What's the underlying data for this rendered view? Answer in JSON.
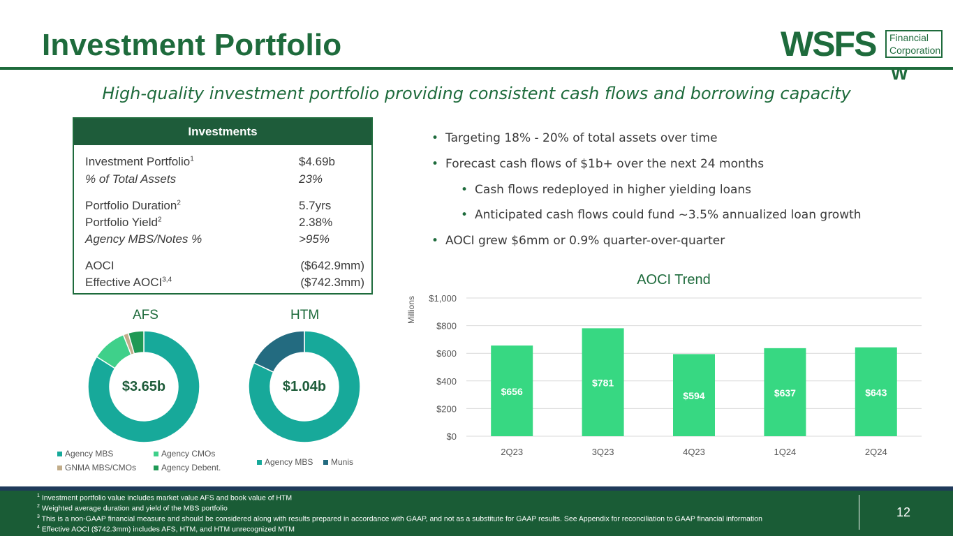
{
  "header": {
    "title": "Investment Portfolio",
    "subtitle": "High-quality investment portfolio providing consistent cash flows and borrowing capacity",
    "logo": {
      "name": "WSFS",
      "line1": "Financial",
      "line2": "Corporation",
      "mark": "W"
    }
  },
  "investments": {
    "heading": "Investments",
    "rows": [
      {
        "label": "Investment Portfolio",
        "sup": "1",
        "value": "$4.69b"
      },
      {
        "label": "% of Total Assets",
        "sup": "",
        "value": "23%"
      },
      {
        "label": "Portfolio Duration",
        "sup": "2",
        "value": "5.7yrs"
      },
      {
        "label": "Portfolio Yield",
        "sup": "2",
        "value": "2.38%"
      },
      {
        "label": "Agency MBS/Notes %",
        "sup": "",
        "value": ">95%"
      },
      {
        "label": "AOCI",
        "sup": "",
        "value": "($642.9mm)"
      },
      {
        "label": "Effective AOCI",
        "sup": "3,4",
        "value": "($742.3mm)"
      }
    ]
  },
  "bullets": [
    "Targeting 18% - 20% of total assets over time",
    "Forecast cash flows of $1b+ over the next 24 months",
    "Cash flows redeployed in higher yielding loans",
    "Anticipated cash flows could fund  ~3.5% annualized loan growth",
    "AOCI grew $6mm or 0.9% quarter-over-quarter"
  ],
  "colors": {
    "green_dark": "#1e6b3c",
    "teal": "#17a99a",
    "teal_light": "#3fd08a",
    "tan": "#c2ad8a",
    "green_mid": "#1f9955",
    "navy_teal": "#236b80",
    "bar": "#37d882"
  },
  "chart_data": [
    {
      "type": "pie",
      "title": "AFS",
      "center_label": "$3.65b",
      "categories": [
        "Agency MBS",
        "Agency CMOs",
        "GNMA MBS/CMOs",
        "Agency Debent."
      ],
      "values": [
        0.84,
        0.1,
        0.015,
        0.045
      ],
      "colors": [
        "#17a99a",
        "#3fd08a",
        "#c2ad8a",
        "#1f9955"
      ]
    },
    {
      "type": "pie",
      "title": "HTM",
      "center_label": "$1.04b",
      "categories": [
        "Agency MBS",
        "Munis"
      ],
      "values": [
        0.82,
        0.18
      ],
      "colors": [
        "#17a99a",
        "#236b80"
      ]
    },
    {
      "type": "bar",
      "title": "AOCI Trend",
      "ylabel": "Millions",
      "categories": [
        "2Q23",
        "3Q23",
        "4Q23",
        "1Q24",
        "2Q24"
      ],
      "values": [
        656,
        781,
        594,
        637,
        643
      ],
      "data_labels": [
        "$656",
        "$781",
        "$594",
        "$637",
        "$643"
      ],
      "ylim": [
        0,
        1000
      ],
      "yticks": [
        "$0",
        "$200",
        "$400",
        "$600",
        "$800",
        "$1,000"
      ],
      "grid": true
    }
  ],
  "footer": {
    "notes": [
      {
        "sup": "1",
        "text": " Investment portfolio value includes market value AFS and book value of HTM"
      },
      {
        "sup": "2",
        "text": " Weighted average duration and yield of the MBS portfolio"
      },
      {
        "sup": "3",
        "text": " This is a non-GAAP financial measure and should be considered along with results prepared in accordance with GAAP, and not as a substitute for GAAP results.  See Appendix for reconciliation to GAAP financial information"
      },
      {
        "sup": "4",
        "text": " Effective AOCI ($742.3mm) includes AFS, HTM, and HTM unrecognized MTM"
      }
    ],
    "page": "12"
  }
}
